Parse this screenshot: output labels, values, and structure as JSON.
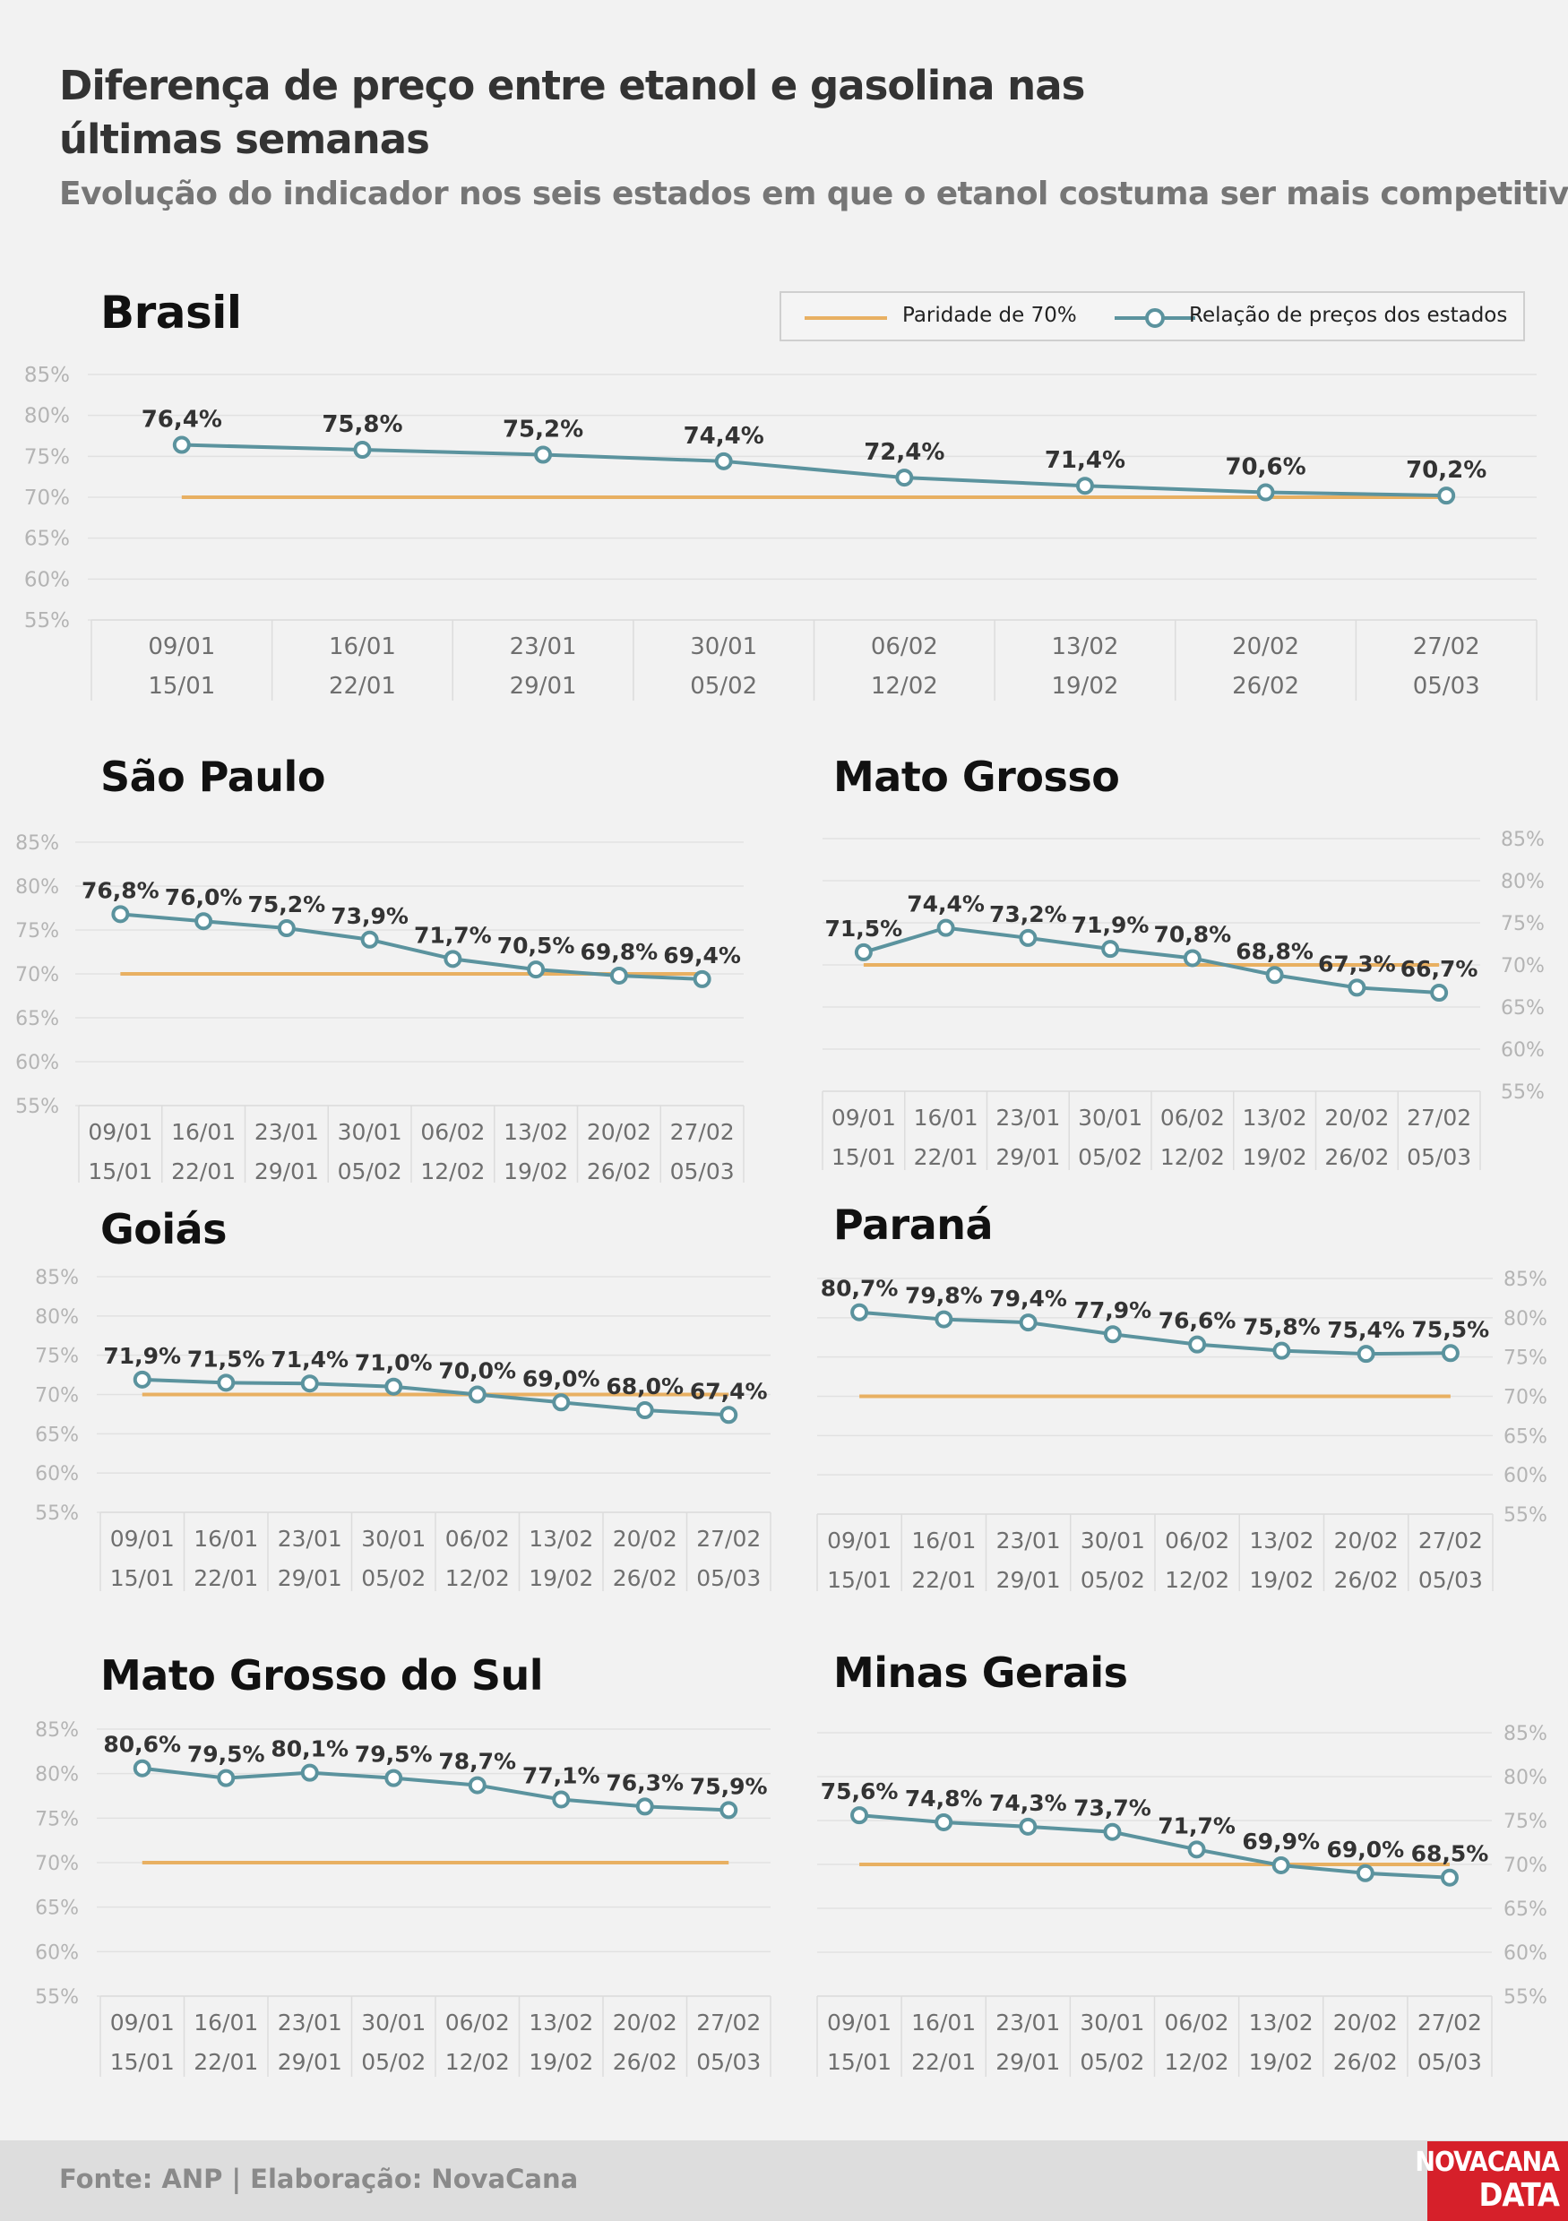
{
  "header": {
    "title": "Diferença de preço entre etanol e gasolina nas últimas semanas",
    "subtitle": "Evolução do indicador nos seis estados em que o etanol costuma ser mais competitivo"
  },
  "legend": {
    "parity_label": "Paridade de 70%",
    "ratio_label": "Relação de preços dos estados"
  },
  "footer": {
    "source": "Fonte: ANP | Elaboração: NovaCana"
  },
  "logo": {
    "line1": "NOVACANA",
    "line2": "DATA"
  },
  "colors": {
    "parity": "#e8b062",
    "ratio": "#5b939e",
    "grid": "#e1e1e1",
    "axis_text": "#b4b4b4",
    "background": "#f2f2f2"
  },
  "chart_data": [
    {
      "type": "line",
      "title": "Brasil",
      "categories": [
        "09/01 15/01",
        "16/01 22/01",
        "23/01 29/01",
        "30/01 05/02",
        "06/02 12/02",
        "13/02 19/02",
        "20/02 26/02",
        "27/02 05/03"
      ],
      "series": [
        {
          "name": "Paridade de 70%",
          "values": [
            70,
            70,
            70,
            70,
            70,
            70,
            70,
            70
          ]
        },
        {
          "name": "Relação de preços dos estados",
          "values": [
            76.4,
            75.8,
            75.2,
            74.4,
            72.4,
            71.4,
            70.6,
            70.2
          ],
          "labels": [
            "76,4%",
            "75,8%",
            "75,2%",
            "74,4%",
            "72,4%",
            "71,4%",
            "70,6%",
            "70,2%"
          ]
        }
      ],
      "yticks": [
        "85%",
        "80%",
        "75%",
        "70%",
        "65%",
        "60%",
        "55%"
      ],
      "ylim": [
        55,
        85
      ],
      "grid": true,
      "y_axis_side": "left",
      "legend": "top-right"
    },
    {
      "type": "line",
      "title": "São Paulo",
      "categories": [
        "09/01 15/01",
        "16/01 22/01",
        "23/01 29/01",
        "30/01 05/02",
        "06/02 12/02",
        "13/02 19/02",
        "20/02 26/02",
        "27/02 05/03"
      ],
      "series": [
        {
          "name": "Paridade de 70%",
          "values": [
            70,
            70,
            70,
            70,
            70,
            70,
            70,
            70
          ]
        },
        {
          "name": "Relação de preços dos estados",
          "values": [
            76.8,
            76.0,
            75.2,
            73.9,
            71.7,
            70.5,
            69.8,
            69.4
          ],
          "labels": [
            "76,8%",
            "76,0%",
            "75,2%",
            "73,9%",
            "71,7%",
            "70,5%",
            "69,8%",
            "69,4%"
          ]
        }
      ],
      "yticks": [
        "85%",
        "80%",
        "75%",
        "70%",
        "65%",
        "60%",
        "55%"
      ],
      "ylim": [
        55,
        85
      ],
      "grid": true,
      "y_axis_side": "left"
    },
    {
      "type": "line",
      "title": "Mato Grosso",
      "categories": [
        "09/01 15/01",
        "16/01 22/01",
        "23/01 29/01",
        "30/01 05/02",
        "06/02 12/02",
        "13/02 19/02",
        "20/02 26/02",
        "27/02 05/03"
      ],
      "series": [
        {
          "name": "Paridade de 70%",
          "values": [
            70,
            70,
            70,
            70,
            70,
            70,
            70,
            70
          ]
        },
        {
          "name": "Relação de preços dos estados",
          "values": [
            71.5,
            74.4,
            73.2,
            71.9,
            70.8,
            68.8,
            67.3,
            66.7
          ],
          "labels": [
            "71,5%",
            "74,4%",
            "73,2%",
            "71,9%",
            "70,8%",
            "68,8%",
            "67,3%",
            "66,7%"
          ]
        }
      ],
      "yticks": [
        "85%",
        "80%",
        "75%",
        "70%",
        "65%",
        "60%",
        "55%"
      ],
      "ylim": [
        55,
        85
      ],
      "grid": true,
      "y_axis_side": "right"
    },
    {
      "type": "line",
      "title": "Goiás",
      "categories": [
        "09/01 15/01",
        "16/01 22/01",
        "23/01 29/01",
        "30/01 05/02",
        "06/02 12/02",
        "13/02 19/02",
        "20/02 26/02",
        "27/02 05/03"
      ],
      "series": [
        {
          "name": "Paridade de 70%",
          "values": [
            70,
            70,
            70,
            70,
            70,
            70,
            70,
            70
          ]
        },
        {
          "name": "Relação de preços dos estados",
          "values": [
            71.9,
            71.5,
            71.4,
            71.0,
            70.0,
            69.0,
            68.0,
            67.4
          ],
          "labels": [
            "71,9%",
            "71,5%",
            "71,4%",
            "71,0%",
            "70,0%",
            "69,0%",
            "68,0%",
            "67,4%"
          ]
        }
      ],
      "yticks": [
        "85%",
        "80%",
        "75%",
        "70%",
        "65%",
        "60%",
        "55%"
      ],
      "ylim": [
        55,
        85
      ],
      "grid": true,
      "y_axis_side": "left"
    },
    {
      "type": "line",
      "title": "Paraná",
      "categories": [
        "09/01 15/01",
        "16/01 22/01",
        "23/01 29/01",
        "30/01 05/02",
        "06/02 12/02",
        "13/02 19/02",
        "20/02 26/02",
        "27/02 05/03"
      ],
      "series": [
        {
          "name": "Paridade de 70%",
          "values": [
            70,
            70,
            70,
            70,
            70,
            70,
            70,
            70
          ]
        },
        {
          "name": "Relação de preços dos estados",
          "values": [
            80.7,
            79.8,
            79.4,
            77.9,
            76.6,
            75.8,
            75.4,
            75.5
          ],
          "labels": [
            "80,7%",
            "79,8%",
            "79,4%",
            "77,9%",
            "76,6%",
            "75,8%",
            "75,4%",
            "75,5%"
          ]
        }
      ],
      "yticks": [
        "85%",
        "80%",
        "75%",
        "70%",
        "65%",
        "60%",
        "55%"
      ],
      "ylim": [
        55,
        85
      ],
      "grid": true,
      "y_axis_side": "right"
    },
    {
      "type": "line",
      "title": "Mato Grosso do Sul",
      "categories": [
        "09/01 15/01",
        "16/01 22/01",
        "23/01 29/01",
        "30/01 05/02",
        "06/02 12/02",
        "13/02 19/02",
        "20/02 26/02",
        "27/02 05/03"
      ],
      "series": [
        {
          "name": "Paridade de 70%",
          "values": [
            70,
            70,
            70,
            70,
            70,
            70,
            70,
            70
          ]
        },
        {
          "name": "Relação de preços dos estados",
          "values": [
            80.6,
            79.5,
            80.1,
            79.5,
            78.7,
            77.1,
            76.3,
            75.9
          ],
          "labels": [
            "80,6%",
            "79,5%",
            "80,1%",
            "79,5%",
            "78,7%",
            "77,1%",
            "76,3%",
            "75,9%"
          ]
        }
      ],
      "yticks": [
        "85%",
        "80%",
        "75%",
        "70%",
        "65%",
        "60%",
        "55%"
      ],
      "ylim": [
        55,
        85
      ],
      "grid": true,
      "y_axis_side": "left"
    },
    {
      "type": "line",
      "title": "Minas Gerais",
      "categories": [
        "09/01 15/01",
        "16/01 22/01",
        "23/01 29/01",
        "30/01 05/02",
        "06/02 12/02",
        "13/02 19/02",
        "20/02 26/02",
        "27/02 05/03"
      ],
      "series": [
        {
          "name": "Paridade de 70%",
          "values": [
            70,
            70,
            70,
            70,
            70,
            70,
            70,
            70
          ]
        },
        {
          "name": "Relação de preços dos estados",
          "values": [
            75.6,
            74.8,
            74.3,
            73.7,
            71.7,
            69.9,
            69.0,
            68.5
          ],
          "labels": [
            "75,6%",
            "74,8%",
            "74,3%",
            "73,7%",
            "71,7%",
            "69,9%",
            "69,0%",
            "68,5%"
          ]
        }
      ],
      "yticks": [
        "85%",
        "80%",
        "75%",
        "70%",
        "65%",
        "60%",
        "55%"
      ],
      "ylim": [
        55,
        85
      ],
      "grid": true,
      "y_axis_side": "right"
    }
  ]
}
